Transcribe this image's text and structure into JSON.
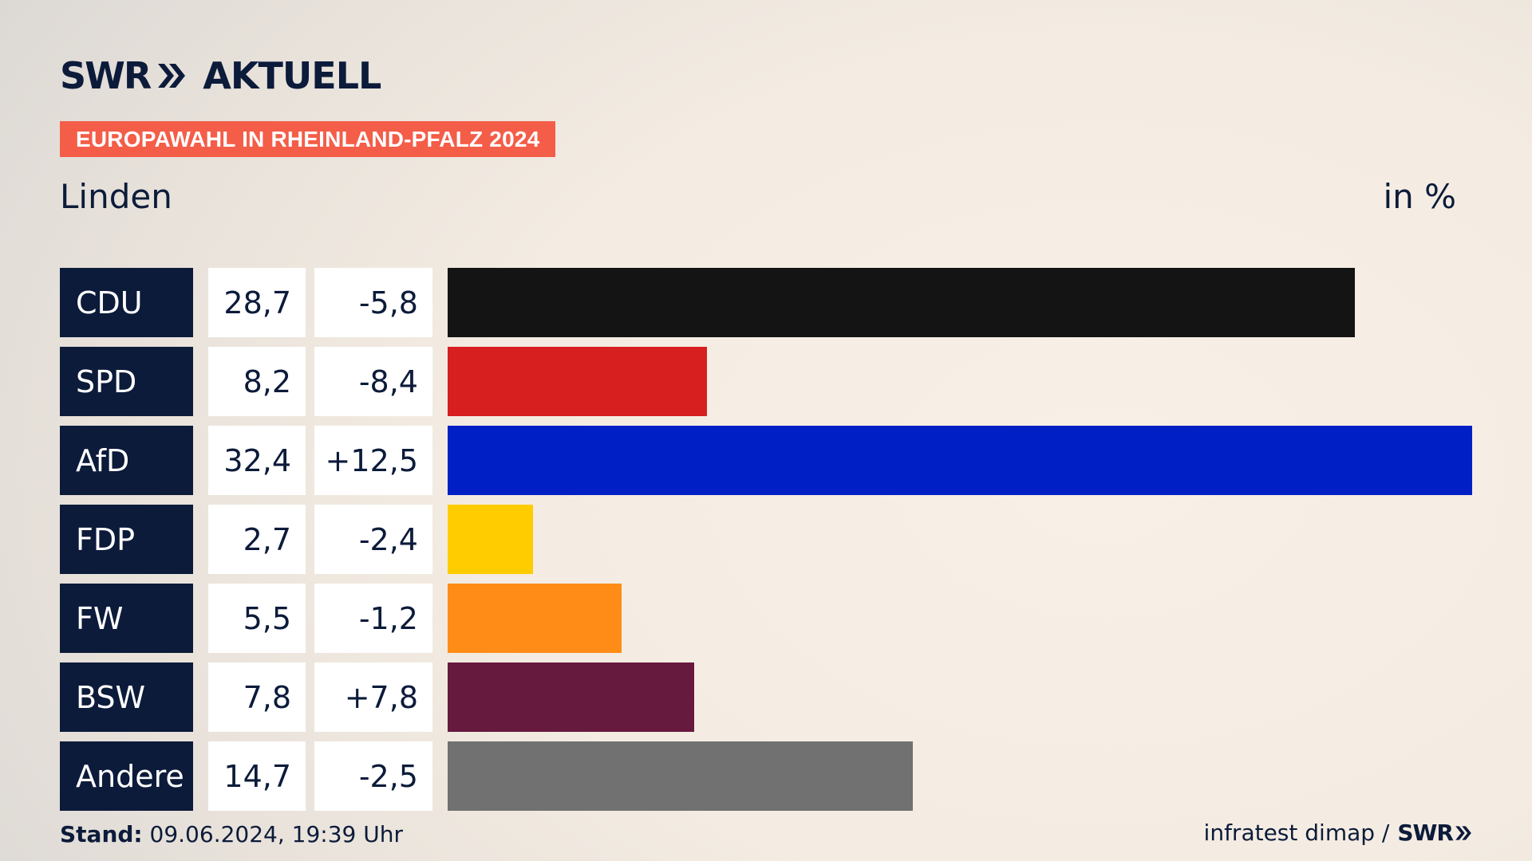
{
  "header": {
    "logo_text": "SWR",
    "logo_suffix": "AKTUELL",
    "badge": "EUROPAWAHL IN RHEINLAND-PFALZ 2024",
    "subtitle": "Linden",
    "unit": "in %"
  },
  "footer": {
    "stand_label": "Stand:",
    "stand_value": "09.06.2024, 19:39 Uhr",
    "source": "infratest dimap /",
    "source_logo": "SWR"
  },
  "chart_data": {
    "type": "bar",
    "title": "Linden",
    "unit": "in %",
    "xlim": [
      0,
      32.4
    ],
    "categories": [
      "CDU",
      "SPD",
      "AfD",
      "FDP",
      "FW",
      "BSW",
      "Andere"
    ],
    "values": [
      28.7,
      8.2,
      32.4,
      2.7,
      5.5,
      7.8,
      14.7
    ],
    "value_labels": [
      "28,7",
      "8,2",
      "32,4",
      "2,7",
      "5,5",
      "7,8",
      "14,7"
    ],
    "diff_labels": [
      "-5,8",
      "-8,4",
      "+12,5",
      "-2,4",
      "-1,2",
      "+7,8",
      "-2,5"
    ],
    "colors": [
      "#141414",
      "#d71f1f",
      "#0020c5",
      "#ffcc00",
      "#ff8c17",
      "#661a3d",
      "#717171"
    ]
  }
}
